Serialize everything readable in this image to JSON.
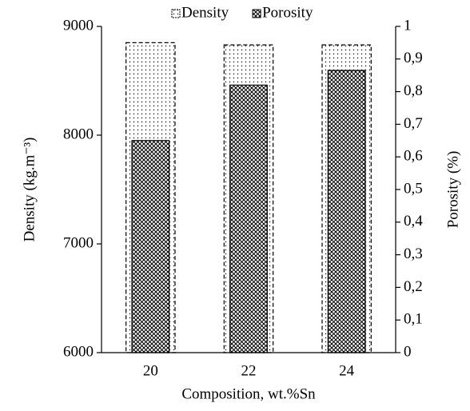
{
  "chart_data": {
    "type": "bar",
    "xlabel": "Composition, wt.%Sn",
    "ylabel": "Density (kg.m⁻³)",
    "y2label": "Porosity (%)",
    "categories": [
      "20",
      "22",
      "24"
    ],
    "series": [
      {
        "name": "Density",
        "color": "#000000",
        "values": [
          8850,
          8830,
          8830
        ]
      },
      {
        "name": "Porosity",
        "color": "#000000",
        "axis": "y2",
        "values": [
          0.65,
          0.82,
          0.865
        ]
      }
    ],
    "ylim": [
      6000,
      9000
    ],
    "yticks": [
      6000,
      7000,
      8000,
      9000
    ],
    "y2lim": [
      0,
      1
    ],
    "y2ticks": [
      0,
      {
        "value": 0.1,
        "label": "0,1"
      },
      {
        "value": 0.2,
        "label": "0,2"
      },
      {
        "value": 0.3,
        "label": "0,3"
      },
      {
        "value": 0.4,
        "label": "0,4"
      },
      {
        "value": 0.5,
        "label": "0,5"
      },
      {
        "value": 0.6,
        "label": "0,6"
      },
      {
        "value": 0.7,
        "label": "0,7"
      },
      {
        "value": 0.8,
        "label": "0,8"
      },
      {
        "value": 0.9,
        "label": "0,9"
      },
      1
    ],
    "legend": "top"
  }
}
